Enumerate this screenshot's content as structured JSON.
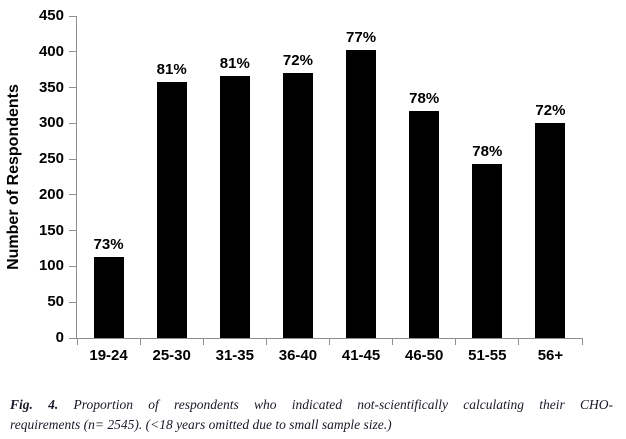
{
  "chart_data": {
    "type": "bar",
    "title": "",
    "categories": [
      "19-24",
      "25-30",
      "31-35",
      "36-40",
      "41-45",
      "46-50",
      "51-55",
      "56+"
    ],
    "values": [
      113,
      358,
      366,
      370,
      403,
      317,
      243,
      300
    ],
    "bar_labels": [
      "73%",
      "81%",
      "81%",
      "72%",
      "77%",
      "78%",
      "78%",
      "72%"
    ],
    "xlabel": "",
    "ylabel": "Number of Respondents",
    "ylim": [
      0,
      450
    ],
    "yticks": [
      0,
      50,
      100,
      150,
      200,
      250,
      300,
      350,
      400,
      450
    ],
    "grid": "off",
    "legend": "none",
    "bar_color": "#000000",
    "axis_color": "#8f8f8f"
  },
  "caption": {
    "prefix": "Fig. 4.",
    "line1": "Proportion of respondents who indicated not-scientifically calculating their CHO-",
    "line2": "requirements (n= 2545). (<18 years omitted due to small sample size.)"
  }
}
